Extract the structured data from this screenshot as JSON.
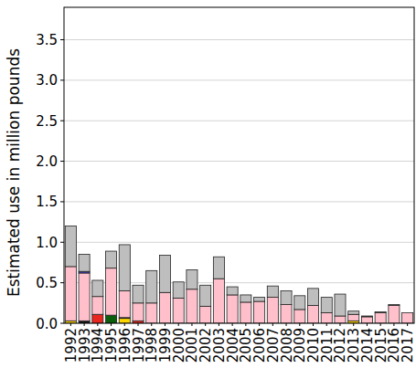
{
  "chart_data": {
    "type": "bar",
    "stacked": true,
    "grid": true,
    "y_label": "Estimated use in million pounds",
    "categories": [
      "1992",
      "1993",
      "1994",
      "1995",
      "1996",
      "1997",
      "1998",
      "1999",
      "2000",
      "2001",
      "2002",
      "2003",
      "2004",
      "2005",
      "2006",
      "2007",
      "2008",
      "2009",
      "2010",
      "2011",
      "2012",
      "2013",
      "2014",
      "2015",
      "2016",
      "2017"
    ],
    "ylim": [
      0,
      3.9
    ],
    "yticks": [
      {
        "value": 0,
        "label": "0.0"
      },
      0.5,
      {
        "value": 1,
        "label": "1.0"
      },
      1.5,
      {
        "value": 2,
        "label": "2.0"
      },
      2.5,
      {
        "value": 3,
        "label": "3.0"
      },
      3.5
    ],
    "series": [
      {
        "color": "#FFD700",
        "values": [
          0.03,
          0,
          0,
          0,
          0.06,
          0,
          0,
          0,
          0,
          0,
          0,
          0,
          0,
          0,
          0,
          0,
          0,
          0,
          0,
          0,
          0,
          0.03,
          0,
          0,
          0,
          0
        ]
      },
      {
        "color": "#1a1a1a",
        "values": [
          0,
          0.03,
          0,
          0,
          0.01,
          0,
          0,
          0,
          0,
          0,
          0,
          0,
          0,
          0,
          0,
          0,
          0,
          0,
          0,
          0,
          0,
          0,
          0,
          0,
          0,
          0
        ]
      },
      {
        "color": "#E8271E",
        "values": [
          0,
          0,
          0.11,
          0,
          0,
          0.03,
          0,
          0,
          0,
          0,
          0,
          0,
          0,
          0,
          0,
          0,
          0,
          0,
          0,
          0,
          0,
          0,
          0,
          0,
          0,
          0
        ]
      },
      {
        "color": "#0B5E0B",
        "values": [
          0,
          0,
          0,
          0.1,
          0,
          0,
          0,
          0,
          0,
          0,
          0,
          0,
          0,
          0,
          0,
          0,
          0,
          0,
          0,
          0,
          0,
          0,
          0,
          0,
          0,
          0
        ]
      },
      {
        "color": "#FFC0CB",
        "values": [
          0.67,
          0.59,
          0.22,
          0.58,
          0.33,
          0.22,
          0.25,
          0.38,
          0.31,
          0.42,
          0.21,
          0.55,
          0.35,
          0.26,
          0.27,
          0.32,
          0.23,
          0.17,
          0.22,
          0.13,
          0.09,
          0.08,
          0.08,
          0.13,
          0.22,
          0.13
        ]
      },
      {
        "color": "#4B3FD0",
        "values": [
          0,
          0.02,
          0,
          0,
          0,
          0,
          0,
          0,
          0,
          0,
          0,
          0,
          0,
          0,
          0,
          0,
          0,
          0,
          0,
          0,
          0,
          0,
          0,
          0,
          0,
          0
        ]
      },
      {
        "color": "#BEBEBE",
        "values": [
          0.5,
          0.21,
          0.2,
          0.21,
          0.57,
          0.22,
          0.4,
          0.46,
          0.2,
          0.24,
          0.26,
          0.27,
          0.1,
          0.09,
          0.05,
          0.14,
          0.17,
          0.17,
          0.21,
          0.19,
          0.27,
          0.04,
          0.01,
          0.01,
          0.01,
          0
        ]
      }
    ]
  }
}
